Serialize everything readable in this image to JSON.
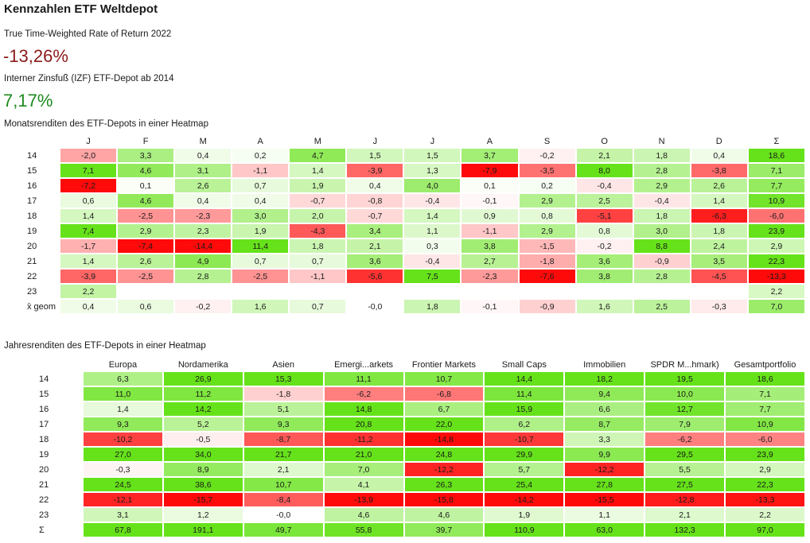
{
  "page": {
    "title": "Kennzahlen ETF Weltdepot",
    "twr_label": "True Time-Weighted Rate of Return 2022",
    "twr_value": "-13,26%",
    "izf_label": "Interner Zinsfuß (IZF) ETF-Depot ab 2014",
    "izf_value": "7,17%"
  },
  "monthly": {
    "label": "Monatsrenditen des ETF-Depots in einer Heatmap",
    "columns": [
      "J",
      "F",
      "M",
      "A",
      "M",
      "J",
      "J",
      "A",
      "S",
      "O",
      "N",
      "D",
      "Σ"
    ],
    "rows": [
      {
        "label": "14",
        "cells": [
          "-2,0",
          "3,3",
          "0,4",
          "0,2",
          "4,7",
          "1,5",
          "1,5",
          "3,7",
          "-0,2",
          "2,1",
          "1,8",
          "0,4",
          "18,6"
        ]
      },
      {
        "label": "15",
        "cells": [
          "7,1",
          "4,6",
          "3,1",
          "-1,1",
          "1,4",
          "-3,9",
          "1,3",
          "-7,9",
          "-3,5",
          "8,0",
          "2,8",
          "-3,8",
          "7,1"
        ]
      },
      {
        "label": "16",
        "cells": [
          "-7,2",
          "0,1",
          "2,6",
          "0,7",
          "1,9",
          "0,4",
          "4,0",
          "0,1",
          "0,2",
          "-0,4",
          "2,9",
          "2,6",
          "7,7"
        ]
      },
      {
        "label": "17",
        "cells": [
          "0,6",
          "4,6",
          "0,4",
          "0,4",
          "-0,7",
          "-0,8",
          "-0,4",
          "-0,1",
          "2,9",
          "2,5",
          "-0,4",
          "1,4",
          "10,9"
        ]
      },
      {
        "label": "18",
        "cells": [
          "1,4",
          "-2,5",
          "-2,3",
          "3,0",
          "2,0",
          "-0,7",
          "1,4",
          "0,9",
          "0,8",
          "-5,1",
          "1,8",
          "-6,3",
          "-6,0"
        ]
      },
      {
        "label": "19",
        "cells": [
          "7,4",
          "2,9",
          "2,3",
          "1,9",
          "-4,3",
          "3,4",
          "1,1",
          "-1,1",
          "2,9",
          "0,8",
          "3,0",
          "1,8",
          "23,9"
        ]
      },
      {
        "label": "20",
        "cells": [
          "-1,7",
          "-7,4",
          "-14,4",
          "11,4",
          "1,8",
          "2,1",
          "0,3",
          "3,8",
          "-1,5",
          "-0,2",
          "8,8",
          "2,4",
          "2,9"
        ]
      },
      {
        "label": "21",
        "cells": [
          "1,4",
          "2,6",
          "4,9",
          "0,7",
          "0,7",
          "3,6",
          "-0,4",
          "2,7",
          "-1,8",
          "3,6",
          "-0,9",
          "3,5",
          "22,3"
        ]
      },
      {
        "label": "22",
        "cells": [
          "-3,9",
          "-2,5",
          "2,8",
          "-2,5",
          "-1,1",
          "-5,6",
          "7,5",
          "-2,3",
          "-7,6",
          "3,8",
          "2,8",
          "-4,5",
          "-13,3"
        ]
      },
      {
        "label": "23",
        "cells": [
          "2,2",
          "",
          "",
          "",
          "",
          "",
          "",
          "",
          "",
          "",
          "",
          "",
          "2,2"
        ]
      },
      {
        "label": "x̄ geom",
        "cells": [
          "0,4",
          "0,6",
          "-0,2",
          "1,6",
          "0,7",
          "-0,0",
          "1,8",
          "-0,1",
          "-0,9",
          "1,6",
          "2,5",
          "-0,3",
          "7,0"
        ]
      }
    ]
  },
  "annual": {
    "label": "Jahresrenditen des ETF-Depots in einer Heatmap",
    "columns": [
      "Europa",
      "Nordamerika",
      "Asien",
      "Emergi...arkets",
      "Frontier Markets",
      "Small Caps",
      "Immobilien",
      "SPDR M...hmark)",
      "Gesamtportfolio"
    ],
    "rows": [
      {
        "label": "14",
        "cells": [
          "6,3",
          "26,9",
          "15,3",
          "11,1",
          "10,7",
          "14,4",
          "18,2",
          "19,5",
          "18,6"
        ]
      },
      {
        "label": "15",
        "cells": [
          "11,0",
          "11,2",
          "-1,8",
          "-6,2",
          "-6,8",
          "11,4",
          "9,4",
          "10,0",
          "7,1"
        ]
      },
      {
        "label": "16",
        "cells": [
          "1,4",
          "14,2",
          "5,1",
          "14,8",
          "6,7",
          "15,9",
          "6,6",
          "12,7",
          "7,7"
        ]
      },
      {
        "label": "17",
        "cells": [
          "9,3",
          "5,2",
          "9,3",
          "20,8",
          "22,0",
          "6,2",
          "8,7",
          "7,9",
          "10,9"
        ]
      },
      {
        "label": "18",
        "cells": [
          "-10,2",
          "-0,5",
          "-8,7",
          "-11,2",
          "-14,8",
          "-10,7",
          "3,3",
          "-6,2",
          "-6,0"
        ]
      },
      {
        "label": "19",
        "cells": [
          "27,0",
          "34,0",
          "21,7",
          "21,0",
          "24,8",
          "29,9",
          "9,9",
          "29,5",
          "23,9"
        ]
      },
      {
        "label": "20",
        "cells": [
          "-0,3",
          "8,9",
          "2,1",
          "7,0",
          "-12,2",
          "5,7",
          "-12,2",
          "5,5",
          "2,9"
        ]
      },
      {
        "label": "21",
        "cells": [
          "24,5",
          "38,6",
          "10,7",
          "4,1",
          "26,3",
          "25,4",
          "27,8",
          "27,5",
          "22,3"
        ]
      },
      {
        "label": "22",
        "cells": [
          "-12,1",
          "-15,7",
          "-8,4",
          "-13,9",
          "-15,8",
          "-14,2",
          "-15,5",
          "-12,8",
          "-13,3"
        ]
      },
      {
        "label": "23",
        "cells": [
          "3,1",
          "1,2",
          "-0,0",
          "4,6",
          "4,6",
          "1,9",
          "1,1",
          "2,1",
          "2,2"
        ]
      },
      {
        "label": "Σ",
        "cells": [
          "67,8",
          "191,1",
          "49,7",
          "55,8",
          "39,7",
          "110,9",
          "63,0",
          "132,3",
          "97,0"
        ]
      }
    ]
  },
  "colors": {
    "positive_max": "#66e21a",
    "negative_max": "#ff0a0a",
    "neutral": "#ffffff",
    "negative_value_text": "#8b1a1a",
    "positive_value_text": "#1e8a1e"
  }
}
